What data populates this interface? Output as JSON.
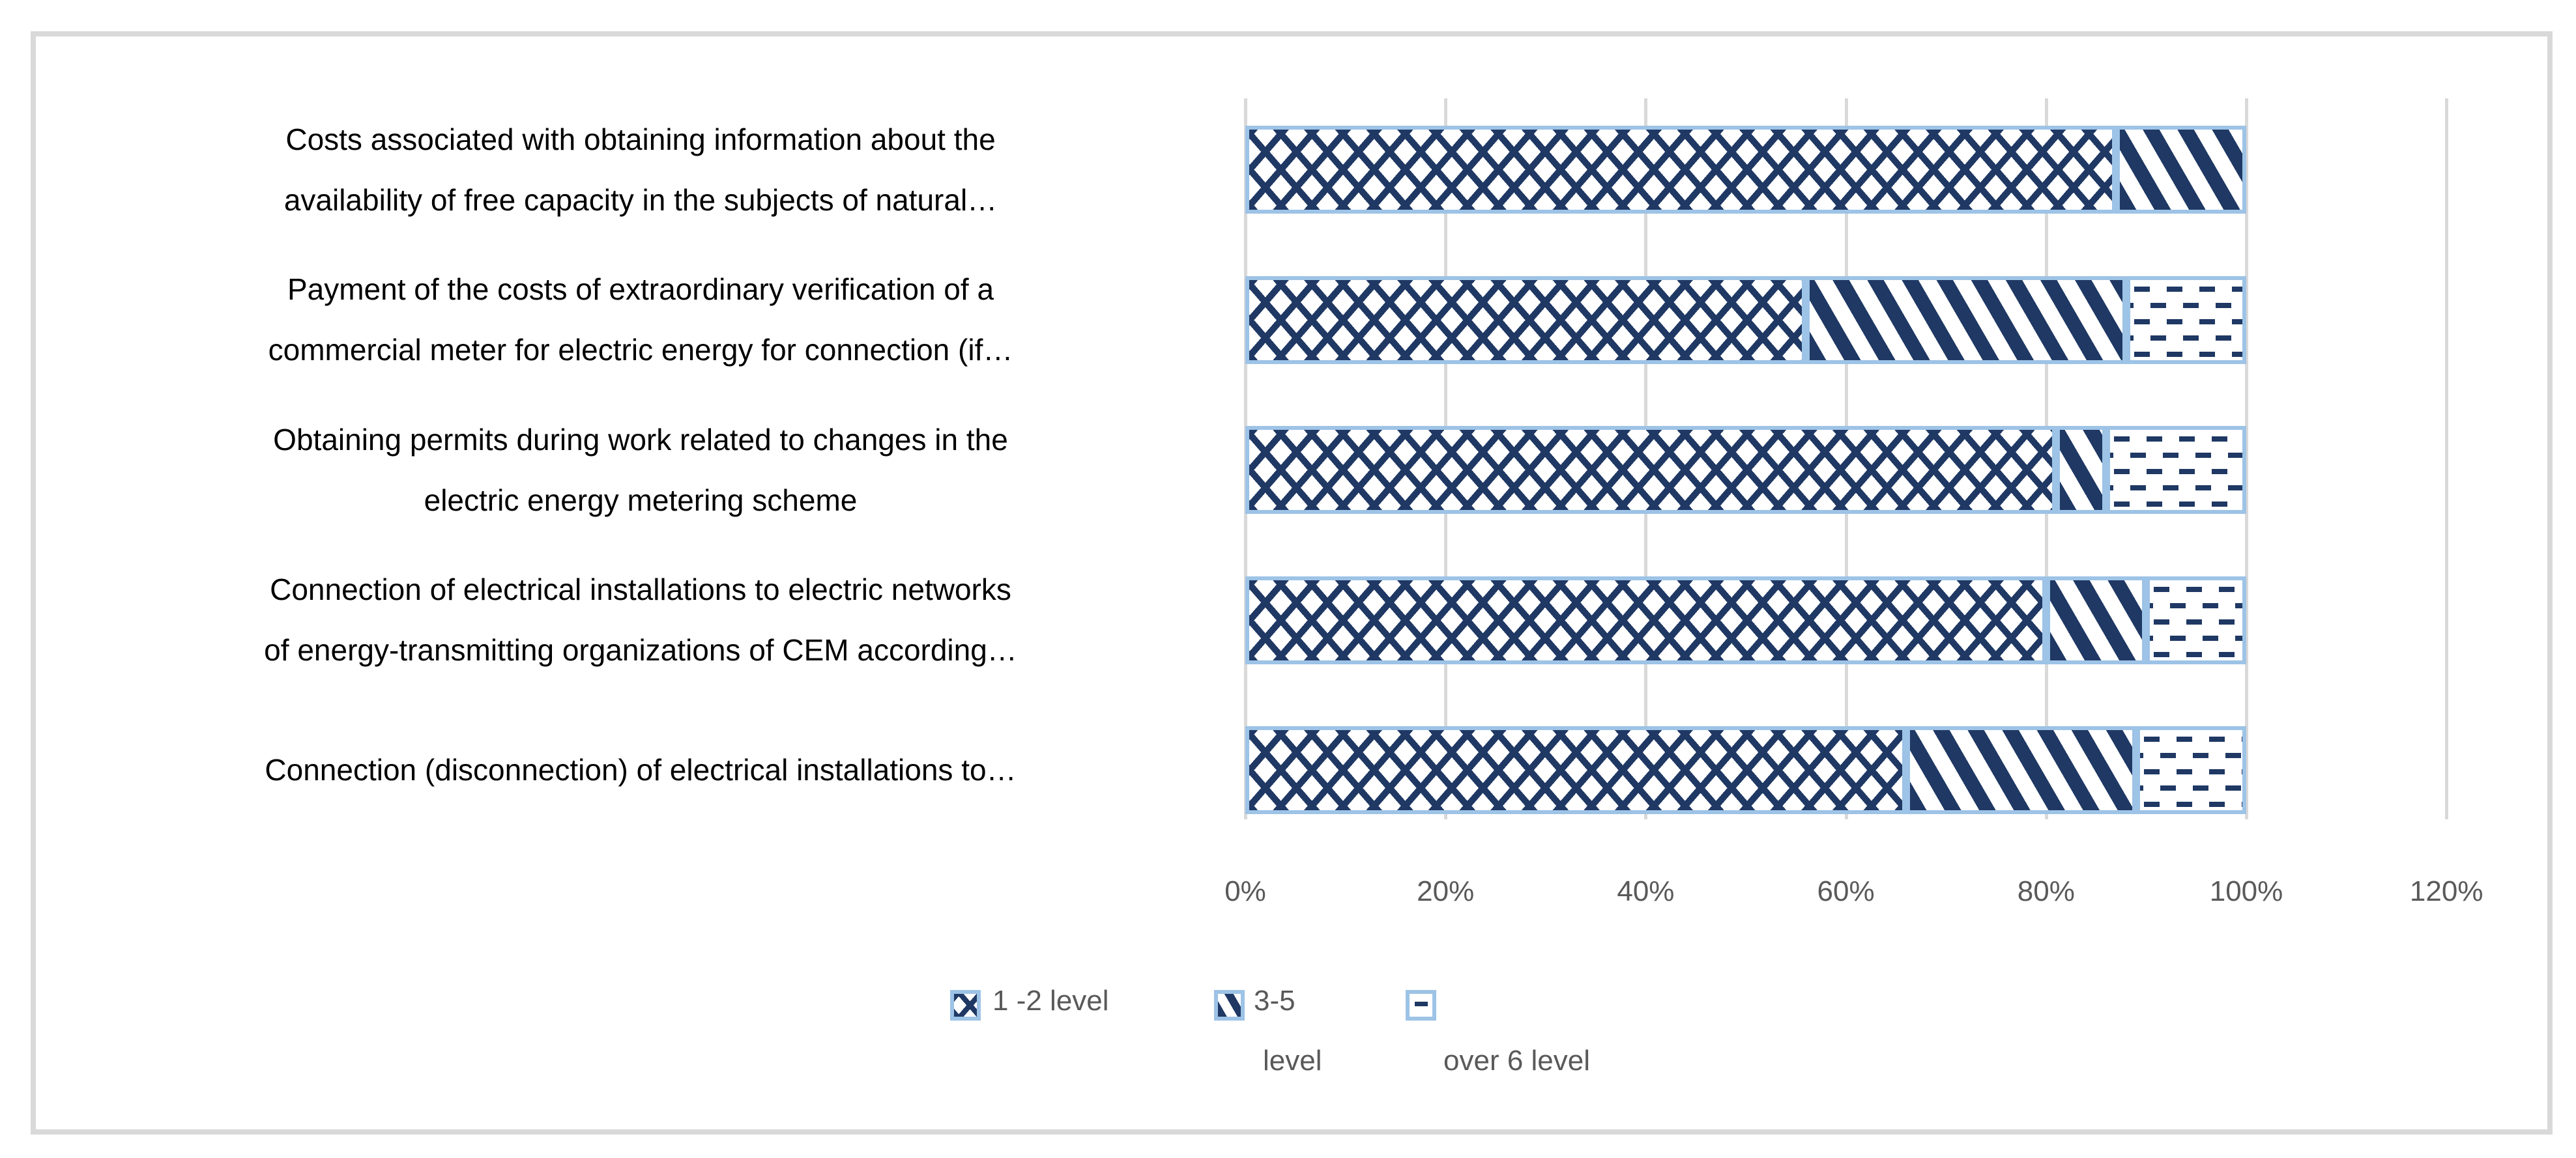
{
  "chart": {
    "background": "#FFFFFF",
    "frame_border_color": "#D9D9D9",
    "colors": {
      "pattern_foreground": "#1F3864",
      "bar_border": "#9DC3E6",
      "gridline": "#D9D9D9",
      "axis_text": "#595959",
      "category_text": "#000000"
    }
  },
  "chart_data": {
    "type": "bar",
    "orientation": "horizontal",
    "stacked_percent": true,
    "title": "",
    "xlabel": "",
    "ylabel": "",
    "xlim": [
      0,
      120
    ],
    "grid": true,
    "legend_position": "bottom",
    "categories": [
      [
        "Costs associated with obtaining information about the",
        "availability of free capacity in the subjects of natural…"
      ],
      [
        "Payment of the costs of extraordinary verification of a",
        "commercial meter for electric energy for connection (if…"
      ],
      [
        "Obtaining permits during work related to changes in the",
        "electric energy metering scheme"
      ],
      [
        "Connection of electrical installations to electric networks",
        "of energy-transmitting organizations of CEM according…"
      ],
      [
        "Connection (disconnection) of electrical installations to…"
      ]
    ],
    "series": [
      {
        "name": "1 -2 level",
        "pattern": "crosshatch",
        "values": [
          87,
          56,
          81,
          80,
          66
        ]
      },
      {
        "name": "3-5 level",
        "pattern": "diagonal-stripes",
        "values": [
          13,
          32,
          5,
          10,
          23
        ]
      },
      {
        "name": "over 6 level",
        "pattern": "dashes",
        "values": [
          0,
          12,
          14,
          10,
          11
        ]
      }
    ],
    "x_ticks": [
      {
        "value": 0,
        "label": "0%"
      },
      {
        "value": 20,
        "label": "20%"
      },
      {
        "value": 40,
        "label": "40%"
      },
      {
        "value": 60,
        "label": "60%"
      },
      {
        "value": 80,
        "label": "80%"
      },
      {
        "value": 100,
        "label": "100%"
      },
      {
        "value": 120,
        "label": "120%"
      }
    ]
  },
  "legend": {
    "items": [
      {
        "pattern": "crosshatch",
        "lines": [
          "1 -2 level"
        ]
      },
      {
        "pattern": "diagonal-stripes",
        "lines": [
          "3-5",
          "level"
        ]
      },
      {
        "pattern": "dashes",
        "lines": [
          "",
          "over 6 level"
        ]
      }
    ]
  }
}
